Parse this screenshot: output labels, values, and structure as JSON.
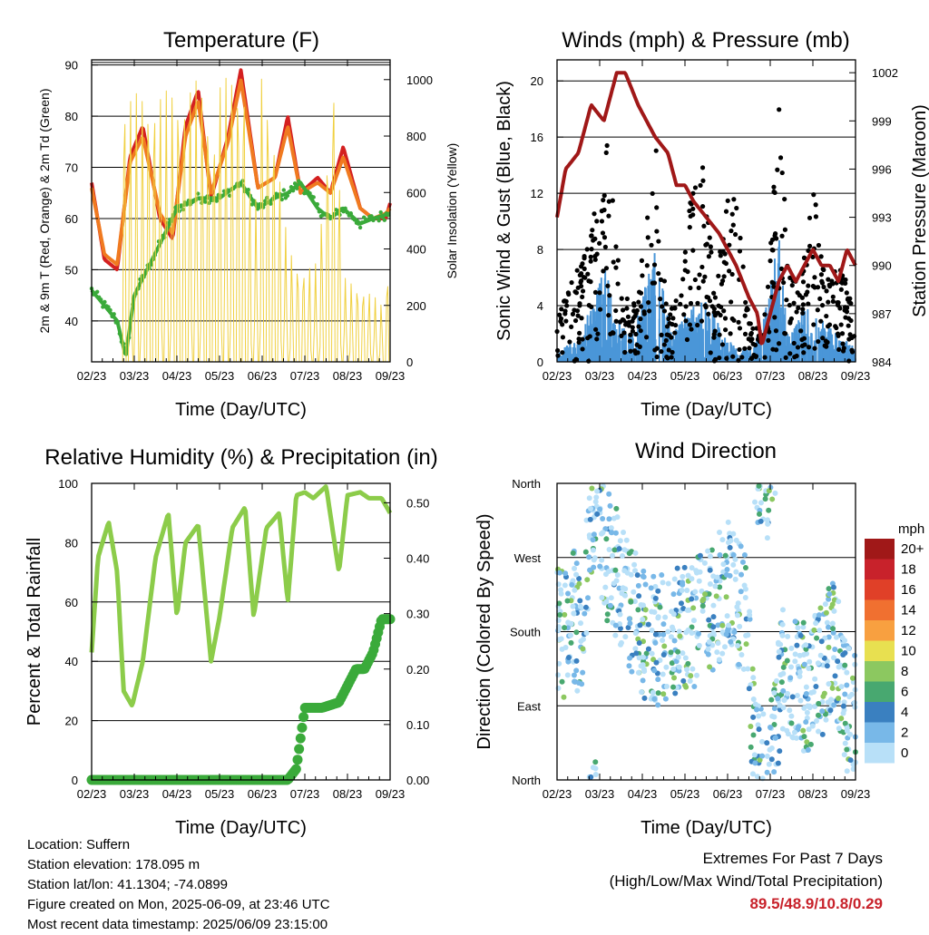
{
  "chart_data": [
    {
      "type": "line",
      "title": "Temperature (F)",
      "xlabel": "Time (Day/UTC)",
      "ylabel_left": "2m & 9m T (Red, Orange) & 2m Td (Green)",
      "ylabel_right": "Solar Insolation (Yellow)",
      "x_ticks": [
        "02/23",
        "03/23",
        "04/23",
        "05/23",
        "06/23",
        "07/23",
        "08/23",
        "09/23"
      ],
      "ylim": [
        32,
        91
      ],
      "y_ticks": [
        40,
        50,
        60,
        70,
        80,
        90
      ],
      "y2lim": [
        0,
        1070
      ],
      "y2_ticks": [
        0,
        200,
        400,
        600,
        800,
        1000
      ],
      "grid": true,
      "series": [
        {
          "name": "2m T",
          "color": "#d42020",
          "x": [
            0,
            0.3,
            0.6,
            0.9,
            1.2,
            1.6,
            1.9,
            2.2,
            2.5,
            2.8,
            3.2,
            3.5,
            3.9,
            4.3,
            4.6,
            4.9,
            5.3,
            5.6,
            5.9,
            6.3,
            6.6,
            6.9,
            7.0
          ],
          "values": [
            67,
            52,
            50,
            72,
            78,
            60,
            56,
            78,
            85,
            64,
            76,
            89,
            66,
            68,
            80,
            65,
            68,
            65,
            74,
            62,
            60,
            60,
            63
          ]
        },
        {
          "name": "9m T",
          "color": "#f07a20",
          "x": [
            0,
            0.3,
            0.6,
            0.9,
            1.2,
            1.6,
            1.9,
            2.2,
            2.5,
            2.8,
            3.2,
            3.5,
            3.9,
            4.3,
            4.6,
            4.9,
            5.3,
            5.6,
            5.9,
            6.3,
            6.6,
            6.9,
            7.0
          ],
          "values": [
            66,
            53,
            51,
            71,
            76,
            61,
            57,
            76,
            83,
            65,
            75,
            87,
            66,
            68,
            78,
            65,
            67,
            65,
            72,
            62,
            60,
            61,
            62
          ]
        },
        {
          "name": "2m Td",
          "color": "#3aaa3a",
          "x": [
            0,
            0.3,
            0.6,
            0.8,
            1.0,
            1.3,
            1.6,
            2.0,
            2.5,
            3.0,
            3.5,
            3.9,
            4.3,
            4.6,
            4.9,
            5.3,
            5.6,
            5.9,
            6.3,
            6.6,
            7.0
          ],
          "values": [
            46,
            43,
            40,
            33,
            45,
            50,
            55,
            62,
            64,
            64,
            67,
            62,
            64,
            65,
            67,
            62,
            60,
            62,
            59,
            60,
            61
          ]
        },
        {
          "name": "Solar Insolation",
          "axis": "right",
          "color": "#f0d040",
          "x": [
            0.7,
            1.3,
            2.2,
            2.5,
            2.9,
            3.0,
            3.6,
            3.8,
            3.9,
            4.0,
            4.3,
            4.6,
            4.9,
            5.3,
            5.7,
            5.9,
            6.5,
            6.9,
            7.0
          ],
          "values": [
            950,
            950,
            970,
            1000,
            820,
            1000,
            1020,
            330,
            820,
            1070,
            810,
            410,
            330,
            350,
            1070,
            300,
            250,
            190,
            550
          ]
        }
      ]
    },
    {
      "type": "scatter",
      "title": "Winds (mph) & Pressure (mb)",
      "xlabel": "Time (Day/UTC)",
      "ylabel_left": "Sonic Wind & Gust (Blue, Black)",
      "ylabel_right": "Station Pressure (Maroon)",
      "x_ticks": [
        "02/23",
        "03/23",
        "04/23",
        "05/23",
        "06/23",
        "07/23",
        "08/23",
        "09/23"
      ],
      "ylim": [
        0,
        21.5
      ],
      "y_ticks": [
        0,
        4,
        8,
        12,
        16,
        20
      ],
      "y2lim": [
        984,
        1002.8
      ],
      "y2_ticks": [
        984,
        987,
        990,
        993,
        996,
        999,
        1002
      ],
      "grid": true,
      "series": [
        {
          "name": "Sonic Wind",
          "color": "#4a96d8",
          "x": [
            0,
            0.5,
            0.9,
            1.1,
            1.4,
            1.8,
            2.1,
            2.3,
            2.7,
            2.9,
            3.2,
            3.6,
            3.9,
            4.2,
            4.6,
            5.0,
            5.2,
            5.4,
            5.8,
            6.2,
            6.6,
            7.0
          ],
          "values": [
            1,
            1.5,
            5,
            8,
            3,
            2,
            6,
            8,
            2,
            3,
            5,
            4,
            2,
            1,
            1,
            5,
            10,
            2,
            4,
            3,
            2,
            1
          ]
        },
        {
          "name": "Gust",
          "color": "#000000",
          "x": [
            0,
            0.4,
            0.8,
            1.0,
            1.2,
            1.5,
            1.9,
            2.1,
            2.3,
            2.6,
            2.9,
            3.1,
            3.4,
            3.7,
            4.0,
            4.2,
            4.5,
            4.8,
            5.0,
            5.2,
            5.4,
            5.7,
            6.0,
            6.3,
            6.6,
            6.9,
            7.0
          ],
          "values": [
            4,
            6,
            10,
            12,
            16,
            5,
            4,
            12,
            18,
            3,
            6,
            11,
            15,
            5,
            12,
            13,
            3,
            2,
            8,
            19,
            8,
            5,
            13,
            6,
            7,
            5,
            4
          ]
        },
        {
          "name": "Pressure",
          "axis": "right",
          "color": "#a01818",
          "x": [
            0,
            0.2,
            0.5,
            0.8,
            1.1,
            1.4,
            1.6,
            1.9,
            2.1,
            2.3,
            2.6,
            2.8,
            3.0,
            3.2,
            3.5,
            3.8,
            4.0,
            4.2,
            4.5,
            4.7,
            4.8,
            5.0,
            5.2,
            5.4,
            5.6,
            5.8,
            6.0,
            6.2,
            6.4,
            6.6,
            6.8,
            7.0
          ],
          "values": [
            993,
            996,
            997,
            1000,
            999,
            1002,
            1002,
            1000,
            999,
            998,
            997,
            995,
            995,
            994,
            993,
            992,
            991,
            990,
            988,
            987,
            985,
            987,
            989,
            990,
            989,
            990,
            991,
            990,
            990,
            989,
            991,
            990
          ]
        }
      ]
    },
    {
      "type": "line",
      "title": "Relative Humidity (%) & Precipitation (in)",
      "xlabel": "Time (Day/UTC)",
      "ylabel_left": "Percent & Total Rainfall",
      "x_ticks": [
        "02/23",
        "03/23",
        "04/23",
        "05/23",
        "06/23",
        "07/23",
        "08/23",
        "09/23"
      ],
      "ylim": [
        0,
        100
      ],
      "y_ticks": [
        0,
        20,
        40,
        60,
        80,
        100
      ],
      "y2lim": [
        0,
        0.535
      ],
      "y2_ticks": [
        "0.00",
        "0.10",
        "0.20",
        "0.30",
        "0.40",
        "0.50"
      ],
      "grid": true,
      "series": [
        {
          "name": "Relative Humidity",
          "color": "#8ccc4a",
          "x": [
            0,
            0.15,
            0.4,
            0.6,
            0.75,
            0.95,
            1.2,
            1.5,
            1.8,
            2.0,
            2.2,
            2.5,
            2.8,
            3.0,
            3.3,
            3.6,
            3.8,
            4.1,
            4.4,
            4.6,
            4.8,
            5.0,
            5.2,
            5.5,
            5.8,
            6.0,
            6.3,
            6.5,
            6.8,
            7.0
          ],
          "values": [
            43,
            75,
            87,
            70,
            30,
            25,
            40,
            75,
            90,
            55,
            80,
            86,
            40,
            55,
            85,
            92,
            55,
            85,
            90,
            60,
            96,
            97,
            95,
            99,
            70,
            96,
            97,
            95,
            95,
            90
          ]
        },
        {
          "name": "Total Rainfall",
          "axis": "right",
          "color": "#3aaa3a",
          "x": [
            0,
            1.0,
            2.0,
            3.0,
            4.0,
            4.6,
            4.8,
            5.0,
            5.4,
            5.8,
            6.2,
            6.4,
            6.6,
            6.8,
            7.0
          ],
          "values": [
            0,
            0,
            0,
            0,
            0,
            0,
            0.02,
            0.13,
            0.13,
            0.14,
            0.2,
            0.2,
            0.23,
            0.29,
            0.29
          ]
        }
      ]
    },
    {
      "type": "scatter",
      "title": "Wind Direction",
      "xlabel": "Time (Day/UTC)",
      "ylabel_left": "Direction (Colored By Speed)",
      "x_ticks": [
        "02/23",
        "03/23",
        "04/23",
        "05/23",
        "06/23",
        "07/23",
        "08/23",
        "09/23"
      ],
      "y_ticks": [
        "North",
        "East",
        "South",
        "West",
        "North"
      ],
      "ylim": [
        0,
        360
      ],
      "grid": true,
      "colorbar": {
        "unit": "mph",
        "labels": [
          "20+",
          "18",
          "16",
          "14",
          "12",
          "10",
          "8",
          "6",
          "4",
          "2",
          "0"
        ],
        "colors": [
          "#a01818",
          "#c8222b",
          "#e04028",
          "#f07030",
          "#f8a040",
          "#e8e050",
          "#8cc860",
          "#48a870",
          "#3a80c0",
          "#78b8e8",
          "#b8e0f8"
        ]
      },
      "series": [
        {
          "name": "Direction",
          "x": [
            0.2,
            0.4,
            0.6,
            0.8,
            1.0,
            1.4,
            1.8,
            2.0,
            2.4,
            2.8,
            3.2,
            3.6,
            4.0,
            4.4,
            4.7,
            5.0,
            5.3,
            5.6,
            5.9,
            6.2,
            6.5,
            6.8
          ],
          "values": [
            180,
            200,
            160,
            330,
            290,
            250,
            200,
            180,
            170,
            180,
            190,
            200,
            240,
            200,
            20,
            10,
            140,
            120,
            110,
            130,
            170,
            90
          ]
        }
      ]
    }
  ],
  "footer": {
    "location": "Location: Suffern",
    "elevation": "Station elevation: 178.095 m",
    "latlon": "Station lat/lon: 41.1304; -74.0899",
    "created": "Figure created on Mon, 2025-06-09, at 23:46 UTC",
    "recent": "Most recent data timestamp: 2025/06/09 23:15:00"
  },
  "extremes": {
    "title": "Extremes For Past 7 Days",
    "subtitle": "(High/Low/Max Wind/Total Precipitation)",
    "values": "89.5/48.9/10.8/0.29"
  }
}
